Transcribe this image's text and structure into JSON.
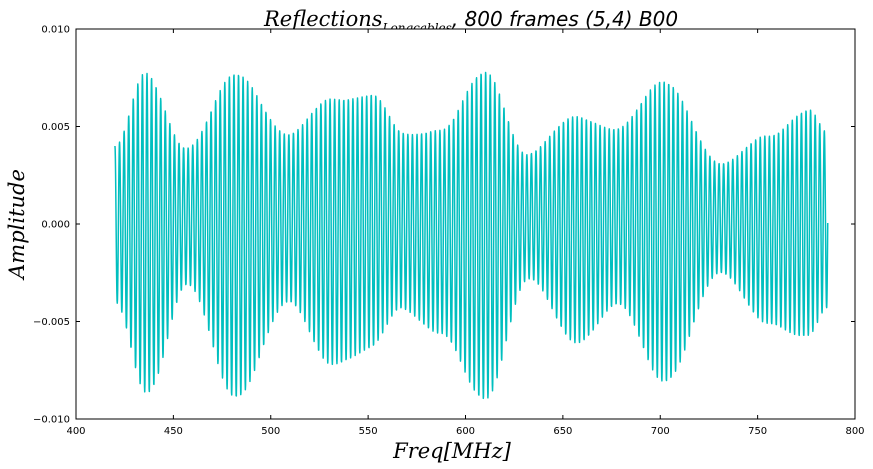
{
  "chart_data": {
    "type": "line",
    "title": {
      "main": "Reflections",
      "subscript": "Longcables",
      "rest": ", 800 frames (5,4) B00"
    },
    "xlabel": "Freq[MHz]",
    "ylabel": "Amplitude",
    "xlim": [
      400,
      800
    ],
    "ylim": [
      -0.01,
      0.01
    ],
    "xticks": [
      "400",
      "450",
      "500",
      "550",
      "600",
      "650",
      "700",
      "750",
      "800"
    ],
    "yticks": [
      "0.010",
      "0.005",
      "0.000",
      "−0.005",
      "−0.010"
    ],
    "grid": false,
    "series": [
      {
        "color": "#00bfbf",
        "x_range": [
          420,
          786
        ],
        "oscillation_period_mhz": 2.35,
        "envelope_peaks": [
          {
            "x": 420,
            "y": 0.004
          },
          {
            "x": 436,
            "y": 0.0082
          },
          {
            "x": 457,
            "y": 0.0035
          },
          {
            "x": 482,
            "y": 0.0083
          },
          {
            "x": 509,
            "y": 0.0043
          },
          {
            "x": 531,
            "y": 0.0068
          },
          {
            "x": 551,
            "y": 0.0065
          },
          {
            "x": 568,
            "y": 0.0045
          },
          {
            "x": 587,
            "y": 0.0052
          },
          {
            "x": 610,
            "y": 0.0084
          },
          {
            "x": 632,
            "y": 0.0032
          },
          {
            "x": 657,
            "y": 0.0058
          },
          {
            "x": 678,
            "y": 0.0045
          },
          {
            "x": 702,
            "y": 0.0077
          },
          {
            "x": 731,
            "y": 0.0028
          },
          {
            "x": 755,
            "y": 0.0048
          },
          {
            "x": 776,
            "y": 0.0058
          },
          {
            "x": 786,
            "y": 0.0045
          }
        ],
        "baseline_wobble": [
          {
            "x": 420,
            "y": 0.0
          },
          {
            "x": 440,
            "y": -0.0005
          },
          {
            "x": 458,
            "y": 0.0004
          },
          {
            "x": 482,
            "y": -0.0006
          },
          {
            "x": 510,
            "y": 0.0003
          },
          {
            "x": 532,
            "y": -0.0004
          },
          {
            "x": 560,
            "y": 0.0003
          },
          {
            "x": 587,
            "y": -0.0004
          },
          {
            "x": 610,
            "y": -0.0006
          },
          {
            "x": 635,
            "y": 0.0004
          },
          {
            "x": 658,
            "y": -0.0003
          },
          {
            "x": 680,
            "y": 0.0004
          },
          {
            "x": 703,
            "y": -0.0004
          },
          {
            "x": 730,
            "y": 0.0003
          },
          {
            "x": 757,
            "y": -0.0003
          },
          {
            "x": 786,
            "y": 0.0002
          }
        ]
      }
    ]
  }
}
